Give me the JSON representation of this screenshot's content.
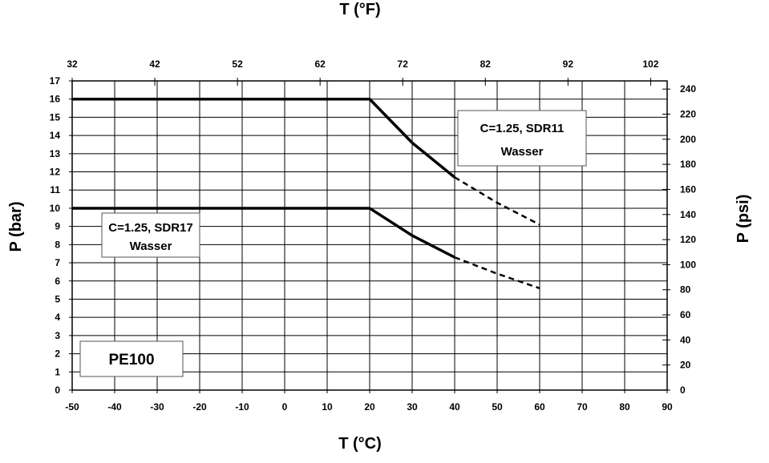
{
  "chart_data": {
    "type": "line",
    "x_label": "T (°C)",
    "x2_label": "T (°F)",
    "y_label": "P (bar)",
    "y2_label": "P (psi)",
    "xlim": [
      -50,
      90
    ],
    "ylim": [
      0,
      17
    ],
    "x2lim": [
      32,
      104
    ],
    "y2lim": [
      0,
      246.5
    ],
    "x_ticks": [
      -50,
      -40,
      -30,
      -20,
      -10,
      0,
      10,
      20,
      30,
      40,
      50,
      60,
      70,
      80,
      90
    ],
    "y_ticks": [
      0,
      1,
      2,
      3,
      4,
      5,
      6,
      7,
      8,
      9,
      10,
      11,
      12,
      13,
      14,
      15,
      16,
      17
    ],
    "x2_ticks": [
      32,
      42,
      52,
      62,
      72,
      82,
      92,
      102
    ],
    "y2_ticks": [
      0,
      20,
      40,
      60,
      80,
      100,
      120,
      140,
      160,
      180,
      200,
      220,
      240
    ],
    "grid": true,
    "series": [
      {
        "solid": {
          "x": [
            -50,
            20,
            30,
            40
          ],
          "y": [
            16,
            16,
            13.6,
            11.7
          ]
        },
        "dashed": {
          "x": [
            40,
            50,
            60
          ],
          "y": [
            11.7,
            10.3,
            9.1
          ]
        }
      },
      {
        "solid": {
          "x": [
            -50,
            20,
            30,
            40
          ],
          "y": [
            10,
            10,
            8.5,
            7.3
          ]
        },
        "dashed": {
          "x": [
            40,
            50,
            60
          ],
          "y": [
            7.3,
            6.4,
            5.6
          ]
        }
      }
    ],
    "annotations": [
      {
        "lines": [
          "C=1.25, SDR11",
          "Wasser"
        ]
      },
      {
        "lines": [
          "C=1.25, SDR17",
          "Wasser"
        ]
      },
      {
        "lines": [
          "PE100"
        ]
      }
    ]
  }
}
